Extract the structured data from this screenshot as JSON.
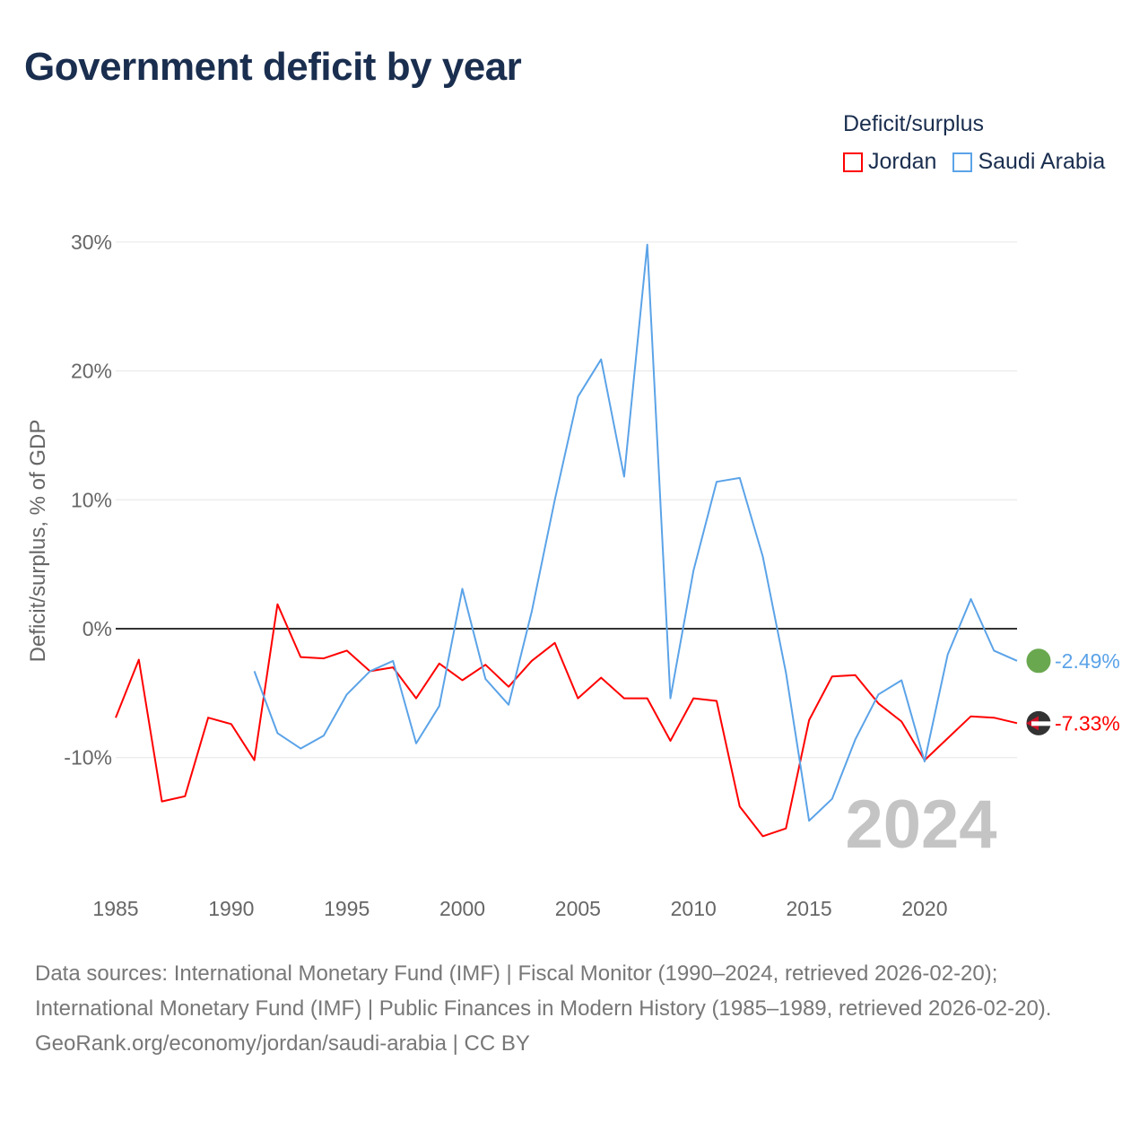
{
  "title": "Government deficit by year",
  "legend": {
    "title": "Deficit/surplus",
    "items": [
      {
        "name": "Jordan",
        "color": "#ff0000"
      },
      {
        "name": "Saudi Arabia",
        "color": "#5ba3e8"
      }
    ]
  },
  "watermark_year": "2024",
  "footer": {
    "sources": "Data sources: International Monetary Fund (IMF) | Fiscal Monitor (1990–2024, retrieved 2026-02-20); International Monetary Fund (IMF) | Public Finances in Modern History (1985–1989, retrieved 2026-02-20).",
    "credit": "GeoRank.org/economy/jordan/saudi-arabia | CC BY"
  },
  "chart_data": {
    "type": "line",
    "title": "Government deficit by year",
    "xlabel": "",
    "ylabel": "Deficit/surplus, % of GDP",
    "xlim": [
      1985,
      2024
    ],
    "ylim": [
      -19.7,
      30
    ],
    "xticks": [
      1985,
      1990,
      1995,
      2000,
      2005,
      2010,
      2015,
      2020
    ],
    "yticks": [
      {
        "v": 30,
        "label": "30%"
      },
      {
        "v": 20,
        "label": "20%"
      },
      {
        "v": 10,
        "label": "10%"
      },
      {
        "v": 0,
        "label": "0%"
      },
      {
        "v": -10,
        "label": "-10%"
      }
    ],
    "series": [
      {
        "name": "Jordan",
        "color": "#ff0000",
        "end_label": "-7.33%",
        "start": 1985,
        "values": [
          -6.9,
          -2.4,
          -13.4,
          -13.0,
          -6.9,
          -7.4,
          -10.2,
          1.9,
          -2.2,
          -2.3,
          -1.7,
          -3.3,
          -3.0,
          -5.4,
          -2.7,
          -4.0,
          -2.8,
          -4.5,
          -2.5,
          -1.1,
          -5.4,
          -3.8,
          -5.4,
          -5.4,
          -8.7,
          -5.4,
          -5.6,
          -13.8,
          -16.1,
          -15.5,
          -7.1,
          -3.7,
          -3.6,
          -5.8,
          -7.2,
          -10.2,
          -8.5,
          -6.8,
          -6.9,
          -7.33
        ]
      },
      {
        "name": "Saudi Arabia",
        "color": "#5ba3e8",
        "end_label": "-2.49%",
        "start": 1991,
        "values": [
          -3.3,
          -8.1,
          -9.3,
          -8.3,
          -5.1,
          -3.3,
          -2.5,
          -8.9,
          -6.0,
          3.1,
          -3.9,
          -5.9,
          1.3,
          10.0,
          18.0,
          20.9,
          11.8,
          29.8,
          -5.4,
          4.5,
          11.4,
          11.7,
          5.6,
          -3.4,
          -14.9,
          -13.2,
          -8.6,
          -5.1,
          -4.0,
          -10.3,
          -2.0,
          2.3,
          -1.7,
          -2.49
        ]
      }
    ]
  }
}
